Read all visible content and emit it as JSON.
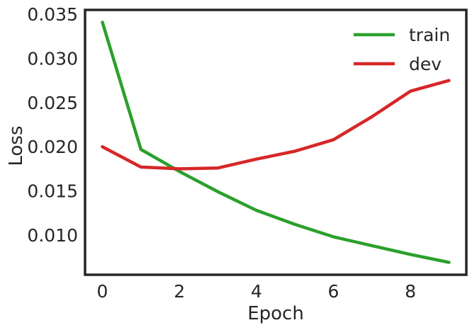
{
  "chart_data": {
    "type": "line",
    "xlabel": "Epoch",
    "ylabel": "Loss",
    "xlim": [
      -0.45,
      9.45
    ],
    "ylim": [
      0.0055,
      0.0355
    ],
    "xticks": [
      0,
      2,
      4,
      6,
      8
    ],
    "yticks": [
      0.01,
      0.015,
      0.02,
      0.025,
      0.03,
      0.035
    ],
    "ytick_labels": [
      "0.010",
      "0.015",
      "0.020",
      "0.025",
      "0.030",
      "0.035"
    ],
    "xtick_labels": [
      "0",
      "2",
      "4",
      "6",
      "8"
    ],
    "grid": false,
    "legend_position": "top-right",
    "x": [
      0,
      1,
      2,
      3,
      4,
      5,
      6,
      7,
      8,
      9
    ],
    "series": [
      {
        "name": "train",
        "color": "#2ca02c",
        "values": [
          0.0341,
          0.0197,
          0.0172,
          0.0149,
          0.0128,
          0.0112,
          0.0098,
          0.0088,
          0.0078,
          0.0069
        ]
      },
      {
        "name": "dev",
        "color": "#d62728",
        "values": [
          0.02,
          0.0177,
          0.0175,
          0.0176,
          0.0186,
          0.0195,
          0.0208,
          0.0234,
          0.0263,
          0.0275
        ]
      }
    ]
  }
}
